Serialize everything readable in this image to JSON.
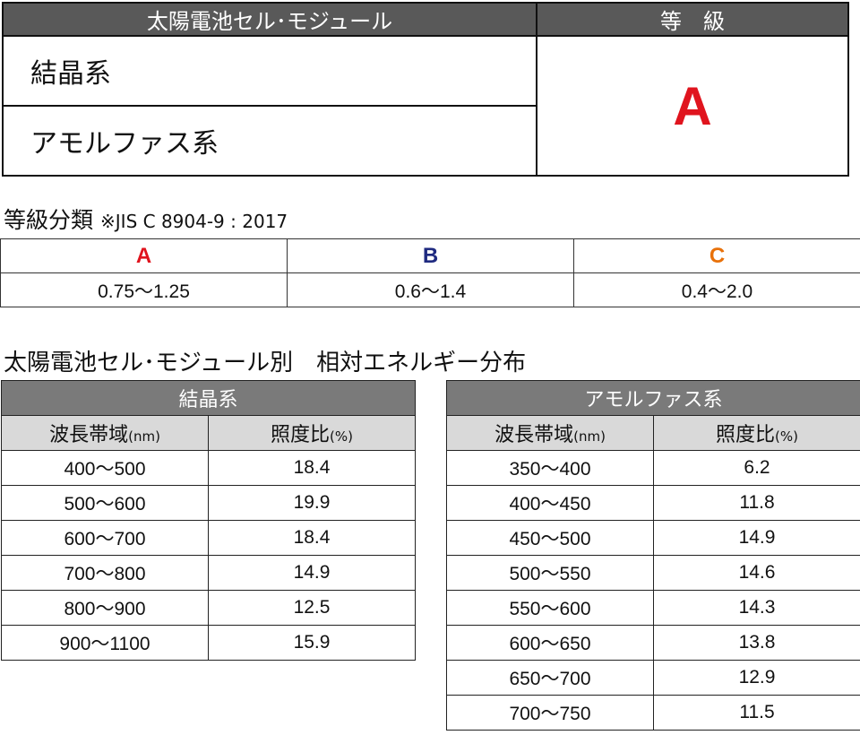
{
  "top": {
    "header_type": "太陽電池セル･モジュール",
    "header_grade": "等　級",
    "types": [
      "結晶系",
      "アモルファス系"
    ],
    "grade": "A"
  },
  "grade_section": {
    "heading": "等級分類",
    "note": "※JIS C 8904-9 : 2017",
    "grades": [
      {
        "letter": "A",
        "range": "0.75〜1.25",
        "color": "#e0141e"
      },
      {
        "letter": "B",
        "range": "0.6〜1.4",
        "color": "#1f2a80"
      },
      {
        "letter": "C",
        "range": "0.4〜2.0",
        "color": "#e8710a"
      }
    ]
  },
  "distribution_section": {
    "heading": "太陽電池セル･モジュール別　相対エネルギー分布",
    "col_wave": "波長帯域",
    "col_wave_unit": "(nm)",
    "col_ratio": "照度比",
    "col_ratio_unit": "(%)",
    "crystal": {
      "title": "結晶系",
      "rows": [
        {
          "band": "400〜500",
          "ratio": "18.4"
        },
        {
          "band": "500〜600",
          "ratio": "19.9"
        },
        {
          "band": "600〜700",
          "ratio": "18.4"
        },
        {
          "band": "700〜800",
          "ratio": "14.9"
        },
        {
          "band": "800〜900",
          "ratio": "12.5"
        },
        {
          "band": "900〜1100",
          "ratio": "15.9"
        }
      ]
    },
    "amorphous": {
      "title": "アモルファス系",
      "rows": [
        {
          "band": "350〜400",
          "ratio": "6.2"
        },
        {
          "band": "400〜450",
          "ratio": "11.8"
        },
        {
          "band": "450〜500",
          "ratio": "14.9"
        },
        {
          "band": "500〜550",
          "ratio": "14.6"
        },
        {
          "band": "550〜600",
          "ratio": "14.3"
        },
        {
          "band": "600〜650",
          "ratio": "13.8"
        },
        {
          "band": "650〜700",
          "ratio": "12.9"
        },
        {
          "band": "700〜750",
          "ratio": "11.5"
        }
      ]
    }
  }
}
